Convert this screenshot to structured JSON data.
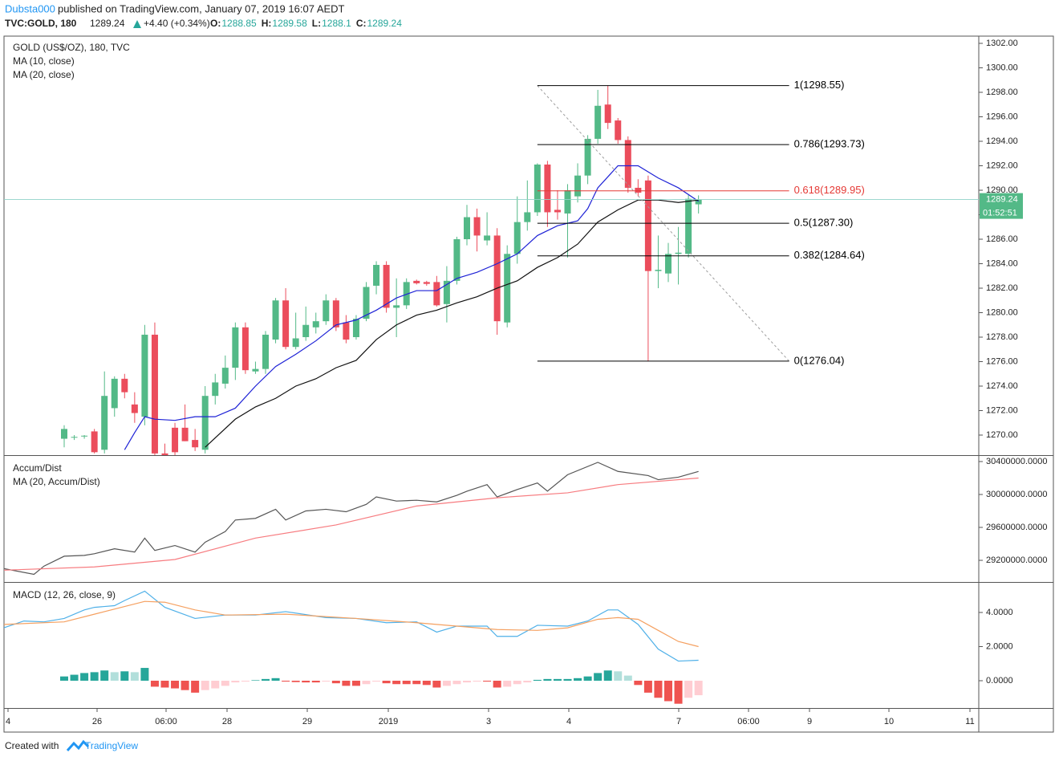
{
  "header": {
    "author": "Dubsta000",
    "published": "published on TradingView.com, January 07, 2019 16:07 AEDT",
    "symbol": "TVC:GOLD, 180",
    "change": "+4.40 (+0.34%)",
    "o": "O:",
    "h": "H:",
    "l": "L:",
    "c": "C:"
  },
  "footer": {
    "created": "Created with",
    "brand": "TradingView"
  },
  "chart_data": [
    {
      "type": "candlestick",
      "title": "GOLD (US$/OZ), 180, TVC",
      "up_color": "#53b987",
      "down_color": "#eb4d5c",
      "ylim": [
        1268.36,
        1302.59
      ],
      "yticks": [
        {
          "value": 1270,
          "label": "1270.00"
        },
        {
          "value": 1272,
          "label": "1272.00"
        },
        {
          "value": 1274,
          "label": "1274.00"
        },
        {
          "value": 1276,
          "label": "1276.00"
        },
        {
          "value": 1278,
          "label": "1278.00"
        },
        {
          "value": 1280,
          "label": "1280.00"
        },
        {
          "value": 1282,
          "label": "1282.00"
        },
        {
          "value": 1284,
          "label": "1284.00"
        },
        {
          "value": 1286,
          "label": "1286.00"
        },
        {
          "value": 1288,
          "label": "1288.00"
        },
        {
          "value": 1290,
          "label": "1290.00"
        },
        {
          "value": 1292,
          "label": "1292.00"
        },
        {
          "value": 1294,
          "label": "1294.00"
        },
        {
          "value": 1296,
          "label": "1296.00"
        },
        {
          "value": 1298,
          "label": "1298.00"
        },
        {
          "value": 1300,
          "label": "1300.00"
        },
        {
          "value": 1302,
          "label": "1302.00"
        }
      ],
      "candles": [
        {
          "o": 1269.7,
          "h": 1270.8,
          "l": 1269,
          "c": 1270.5
        },
        {
          "o": 1269.8,
          "h": 1270,
          "l": 1269.6,
          "c": 1269.85
        },
        {
          "o": 1269.9,
          "h": 1270,
          "l": 1269.7,
          "c": 1269.95
        },
        {
          "o": 1270.3,
          "h": 1270.5,
          "l": 1268.5,
          "c": 1268.6
        },
        {
          "o": 1268.8,
          "h": 1275.2,
          "l": 1268.5,
          "c": 1273.2
        },
        {
          "o": 1272.2,
          "h": 1274.8,
          "l": 1271.5,
          "c": 1274.6
        },
        {
          "o": 1274.6,
          "h": 1275,
          "l": 1273,
          "c": 1273.5
        },
        {
          "o": 1272.5,
          "h": 1273.5,
          "l": 1271,
          "c": 1271.8
        },
        {
          "o": 1271.5,
          "h": 1279,
          "l": 1270.8,
          "c": 1278.2
        },
        {
          "o": 1278.2,
          "h": 1279.2,
          "l": 1268,
          "c": 1268.5
        },
        {
          "o": 1268.5,
          "h": 1269.3,
          "l": 1267,
          "c": 1268
        },
        {
          "o": 1270.6,
          "h": 1271,
          "l": 1268,
          "c": 1268.6
        },
        {
          "o": 1270.6,
          "h": 1272.5,
          "l": 1269.5,
          "c": 1269.5
        },
        {
          "o": 1269.6,
          "h": 1270.5,
          "l": 1268.7,
          "c": 1269
        },
        {
          "o": 1268.8,
          "h": 1274,
          "l": 1268.5,
          "c": 1273.2
        },
        {
          "o": 1273.2,
          "h": 1275,
          "l": 1272.5,
          "c": 1274.3
        },
        {
          "o": 1274.2,
          "h": 1276.5,
          "l": 1273.8,
          "c": 1275.5
        },
        {
          "o": 1275.5,
          "h": 1279.2,
          "l": 1274.5,
          "c": 1278.8
        },
        {
          "o": 1278.8,
          "h": 1279.2,
          "l": 1275,
          "c": 1275.3
        },
        {
          "o": 1275.2,
          "h": 1276,
          "l": 1275,
          "c": 1275.4
        },
        {
          "o": 1275.4,
          "h": 1278.5,
          "l": 1275,
          "c": 1278.2
        },
        {
          "o": 1277.8,
          "h": 1281.2,
          "l": 1277.5,
          "c": 1281
        },
        {
          "o": 1281,
          "h": 1282,
          "l": 1277,
          "c": 1277.2
        },
        {
          "o": 1277.2,
          "h": 1280,
          "l": 1277,
          "c": 1277.9
        },
        {
          "o": 1278,
          "h": 1280.5,
          "l": 1277.7,
          "c": 1279
        },
        {
          "o": 1278.8,
          "h": 1280,
          "l": 1278.3,
          "c": 1279.3
        },
        {
          "o": 1279.3,
          "h": 1281.5,
          "l": 1279,
          "c": 1281
        },
        {
          "o": 1281,
          "h": 1281.2,
          "l": 1278.5,
          "c": 1278.8
        },
        {
          "o": 1279.2,
          "h": 1279.8,
          "l": 1277.5,
          "c": 1277.8
        },
        {
          "o": 1278,
          "h": 1279.8,
          "l": 1277.8,
          "c": 1279.5
        },
        {
          "o": 1279.5,
          "h": 1282.5,
          "l": 1279.3,
          "c": 1282.1
        },
        {
          "o": 1282.2,
          "h": 1284.2,
          "l": 1281.5,
          "c": 1283.9
        },
        {
          "o": 1283.9,
          "h": 1284.2,
          "l": 1280,
          "c": 1280.4
        },
        {
          "o": 1280.4,
          "h": 1282.8,
          "l": 1278,
          "c": 1280.6
        },
        {
          "o": 1280.6,
          "h": 1282.8,
          "l": 1280.3,
          "c": 1282.5
        },
        {
          "o": 1282.6,
          "h": 1282.7,
          "l": 1282.3,
          "c": 1282.4
        },
        {
          "o": 1282.5,
          "h": 1282.6,
          "l": 1282.2,
          "c": 1282.35
        },
        {
          "o": 1282.5,
          "h": 1283,
          "l": 1280.5,
          "c": 1280.6
        },
        {
          "o": 1280.7,
          "h": 1283.8,
          "l": 1279.2,
          "c": 1282.6
        },
        {
          "o": 1282.6,
          "h": 1286.2,
          "l": 1282.3,
          "c": 1286
        },
        {
          "o": 1286,
          "h": 1288.8,
          "l": 1285.5,
          "c": 1287.8
        },
        {
          "o": 1287.8,
          "h": 1288.5,
          "l": 1285,
          "c": 1286.3
        },
        {
          "o": 1285.9,
          "h": 1288.2,
          "l": 1285.5,
          "c": 1286.3
        },
        {
          "o": 1286.3,
          "h": 1286.9,
          "l": 1278.2,
          "c": 1279.3
        },
        {
          "o": 1279.2,
          "h": 1285.5,
          "l": 1278.8,
          "c": 1284.8
        },
        {
          "o": 1284.8,
          "h": 1289.5,
          "l": 1284,
          "c": 1287.4
        },
        {
          "o": 1287.4,
          "h": 1290.8,
          "l": 1286.7,
          "c": 1288.2
        },
        {
          "o": 1288.2,
          "h": 1292.2,
          "l": 1287.9,
          "c": 1292.1
        },
        {
          "o": 1292.1,
          "h": 1292.4,
          "l": 1287,
          "c": 1288.2
        },
        {
          "o": 1288.4,
          "h": 1290,
          "l": 1287.6,
          "c": 1288.2
        },
        {
          "o": 1288.1,
          "h": 1290.5,
          "l": 1284.5,
          "c": 1290
        },
        {
          "o": 1289.5,
          "h": 1292.2,
          "l": 1289,
          "c": 1291.2
        },
        {
          "o": 1291.2,
          "h": 1294.5,
          "l": 1290.5,
          "c": 1294.2
        },
        {
          "o": 1294.2,
          "h": 1298.2,
          "l": 1293.8,
          "c": 1296.9
        },
        {
          "o": 1297,
          "h": 1298.55,
          "l": 1295,
          "c": 1295.5
        },
        {
          "o": 1295.7,
          "h": 1295.9,
          "l": 1293.8,
          "c": 1294.1
        },
        {
          "o": 1294.1,
          "h": 1294.4,
          "l": 1289.8,
          "c": 1290.2
        },
        {
          "o": 1290.2,
          "h": 1290.9,
          "l": 1289.5,
          "c": 1289.8
        },
        {
          "o": 1290.8,
          "h": 1291.2,
          "l": 1276.04,
          "c": 1283.4
        },
        {
          "o": 1283.4,
          "h": 1286.3,
          "l": 1282,
          "c": 1283.5
        },
        {
          "o": 1283.2,
          "h": 1285.7,
          "l": 1282.5,
          "c": 1284.8
        },
        {
          "o": 1284.8,
          "h": 1287,
          "l": 1282.3,
          "c": 1284.9
        },
        {
          "o": 1284.8,
          "h": 1289.6,
          "l": 1284.5,
          "c": 1289.3
        },
        {
          "o": 1288.85,
          "h": 1289.58,
          "l": 1288.1,
          "c": 1289.24
        }
      ],
      "series": [
        {
          "name": "MA (10, close)",
          "color": "#1e22d6",
          "x": [
            6,
            7,
            8,
            9,
            11,
            13,
            15,
            17,
            19,
            21,
            23,
            25,
            27,
            29,
            31,
            33,
            35,
            37,
            39,
            41,
            43,
            45,
            47,
            49,
            51,
            52,
            53,
            55,
            57,
            59,
            61,
            63
          ],
          "values": [
            1268.8,
            1270.2,
            1271.5,
            1271.3,
            1271.2,
            1271.5,
            1271.5,
            1272.2,
            1274,
            1275.6,
            1276.6,
            1277.7,
            1279,
            1279.4,
            1280.2,
            1281.2,
            1281.8,
            1281.8,
            1282.8,
            1283.3,
            1284,
            1284.8,
            1286.3,
            1287.1,
            1287.5,
            1288.5,
            1290.2,
            1292,
            1292,
            1291,
            1290.2,
            1289.1
          ]
        },
        {
          "name": "MA (20, close)",
          "color": "#111111",
          "x": [
            14,
            17,
            19,
            21,
            23,
            25,
            27,
            29,
            31,
            33,
            35,
            37,
            39,
            41,
            43,
            45,
            47,
            49,
            51,
            53,
            55,
            57,
            59,
            61,
            63
          ],
          "values": [
            1269,
            1271.3,
            1272.3,
            1273,
            1274,
            1274.6,
            1275.5,
            1276.1,
            1277.8,
            1279,
            1279.8,
            1280.2,
            1280.8,
            1281.3,
            1282,
            1282.6,
            1283.7,
            1284.5,
            1285.6,
            1287.4,
            1288.4,
            1289.2,
            1289.2,
            1289,
            1289.2
          ]
        }
      ],
      "fib": {
        "start": 47,
        "end": 72,
        "trend_color": "#9e9e9e",
        "levels": [
          {
            "label": "1(1298.55)",
            "price": 1298.55,
            "color": "#000000"
          },
          {
            "label": "0.786(1293.73)",
            "price": 1293.73,
            "color": "#000000"
          },
          {
            "label": "0.618(1289.95)",
            "price": 1289.95,
            "color": "#e53935"
          },
          {
            "label": "0.5(1287.30)",
            "price": 1287.3,
            "color": "#000000"
          },
          {
            "label": "0.382(1284.64)",
            "price": 1284.64,
            "color": "#000000"
          },
          {
            "label": "0(1276.04)",
            "price": 1276.04,
            "color": "#000000"
          }
        ]
      },
      "price_tag_color": "#53b987",
      "countdown": "01:52:51"
    },
    {
      "type": "line",
      "ylim": [
        28937000,
        30468000
      ],
      "yticks": [
        {
          "value": 29200000,
          "label": "29200000.0000"
        },
        {
          "value": 29600000,
          "label": "29600000.0000"
        },
        {
          "value": 30000000,
          "label": "30000000.0000"
        },
        {
          "value": 30400000,
          "label": "30400000.0000"
        }
      ],
      "series": [
        {
          "name": "Accum/Dist",
          "color": "#555555",
          "x": [
            -6,
            -3,
            -2,
            0,
            2,
            3,
            5,
            7,
            8,
            9,
            11,
            13,
            14,
            16,
            17,
            19,
            21,
            22,
            24,
            26,
            28,
            30,
            31,
            33,
            35,
            37,
            39,
            40,
            42,
            43,
            45,
            47,
            48,
            50,
            53,
            55,
            58,
            59,
            61,
            63
          ],
          "values": [
            29100000,
            29030000,
            29130000,
            29250000,
            29260000,
            29280000,
            29340000,
            29300000,
            29470000,
            29320000,
            29380000,
            29300000,
            29420000,
            29550000,
            29690000,
            29710000,
            29820000,
            29690000,
            29800000,
            29820000,
            29790000,
            29880000,
            29970000,
            29920000,
            29930000,
            29910000,
            29990000,
            30040000,
            30120000,
            29970000,
            30060000,
            30140000,
            30040000,
            30240000,
            30390000,
            30280000,
            30230000,
            30180000,
            30210000,
            30280000
          ]
        },
        {
          "name": "MA (20, Accum/Dist)",
          "color": "#f77c80",
          "x": [
            -6,
            3,
            11,
            19,
            27,
            35,
            43,
            50,
            55,
            63
          ],
          "values": [
            29080000,
            29120000,
            29210000,
            29470000,
            29630000,
            29860000,
            29960000,
            30020000,
            30120000,
            30200000
          ]
        }
      ]
    },
    {
      "type": "macd",
      "title": "MACD (12, 26, close, 9)",
      "ylim": [
        -1.6,
        5.74
      ],
      "yticks": [
        {
          "value": 0,
          "label": "0.0000"
        },
        {
          "value": 2,
          "label": "2.0000"
        },
        {
          "value": 4,
          "label": "4.0000"
        }
      ],
      "series": [
        {
          "name": "MACD",
          "color": "#4fb0e8",
          "x": [
            -6,
            -4,
            -2,
            0,
            2,
            3,
            5,
            6,
            8,
            10,
            13,
            16,
            19,
            22,
            26,
            29,
            32,
            35,
            37,
            39,
            42,
            43,
            45,
            47,
            50,
            52,
            54,
            55,
            57,
            59,
            61,
            63
          ],
          "values": [
            3.1,
            3.5,
            3.45,
            3.65,
            4.15,
            4.3,
            4.4,
            4.7,
            5.25,
            4.3,
            3.65,
            3.85,
            3.85,
            4.05,
            3.7,
            3.65,
            3.4,
            3.45,
            2.85,
            3.2,
            3.2,
            2.6,
            2.6,
            3.25,
            3.2,
            3.5,
            4.15,
            4.15,
            3.3,
            1.85,
            1.15,
            1.2
          ]
        },
        {
          "name": "Signal",
          "color": "#f5a060",
          "x": [
            -6,
            0,
            3,
            8,
            10,
            13,
            16,
            22,
            29,
            35,
            39,
            43,
            47,
            50,
            53,
            55,
            57,
            59,
            61,
            63
          ],
          "values": [
            3.3,
            3.45,
            3.9,
            4.65,
            4.6,
            4.15,
            3.85,
            3.9,
            3.65,
            3.4,
            3.2,
            3.0,
            2.95,
            3.1,
            3.6,
            3.7,
            3.6,
            2.95,
            2.3,
            2.0
          ]
        }
      ],
      "histogram": {
        "colors": [
          "#26a69a",
          "#b2dfdb",
          "#ef5350",
          "#ffcdd2"
        ],
        "values": [
          0.25,
          0.35,
          0.45,
          0.5,
          0.6,
          0.5,
          0.55,
          0.5,
          0.75,
          -0.35,
          -0.4,
          -0.45,
          -0.55,
          -0.7,
          -0.55,
          -0.45,
          -0.3,
          -0.1,
          -0.05,
          0.03,
          0.1,
          0.15,
          -0.05,
          -0.08,
          -0.1,
          -0.1,
          -0.05,
          -0.15,
          -0.3,
          -0.3,
          -0.2,
          -0.05,
          -0.15,
          -0.2,
          -0.2,
          -0.2,
          -0.25,
          -0.4,
          -0.3,
          -0.2,
          -0.1,
          -0.05,
          -0.05,
          -0.4,
          -0.35,
          -0.2,
          -0.1,
          0.05,
          0.1,
          0.1,
          0.1,
          0.15,
          0.25,
          0.45,
          0.6,
          0.55,
          0.3,
          -0.25,
          -0.7,
          -1.0,
          -1.2,
          -1.35,
          -1.0,
          -0.85
        ]
      },
      "time_labels": [
        "4",
        "26",
        "06:00",
        "28",
        "29",
        "2019",
        "3",
        "4",
        "7",
        "06:00",
        "9",
        "10",
        "11"
      ]
    }
  ]
}
